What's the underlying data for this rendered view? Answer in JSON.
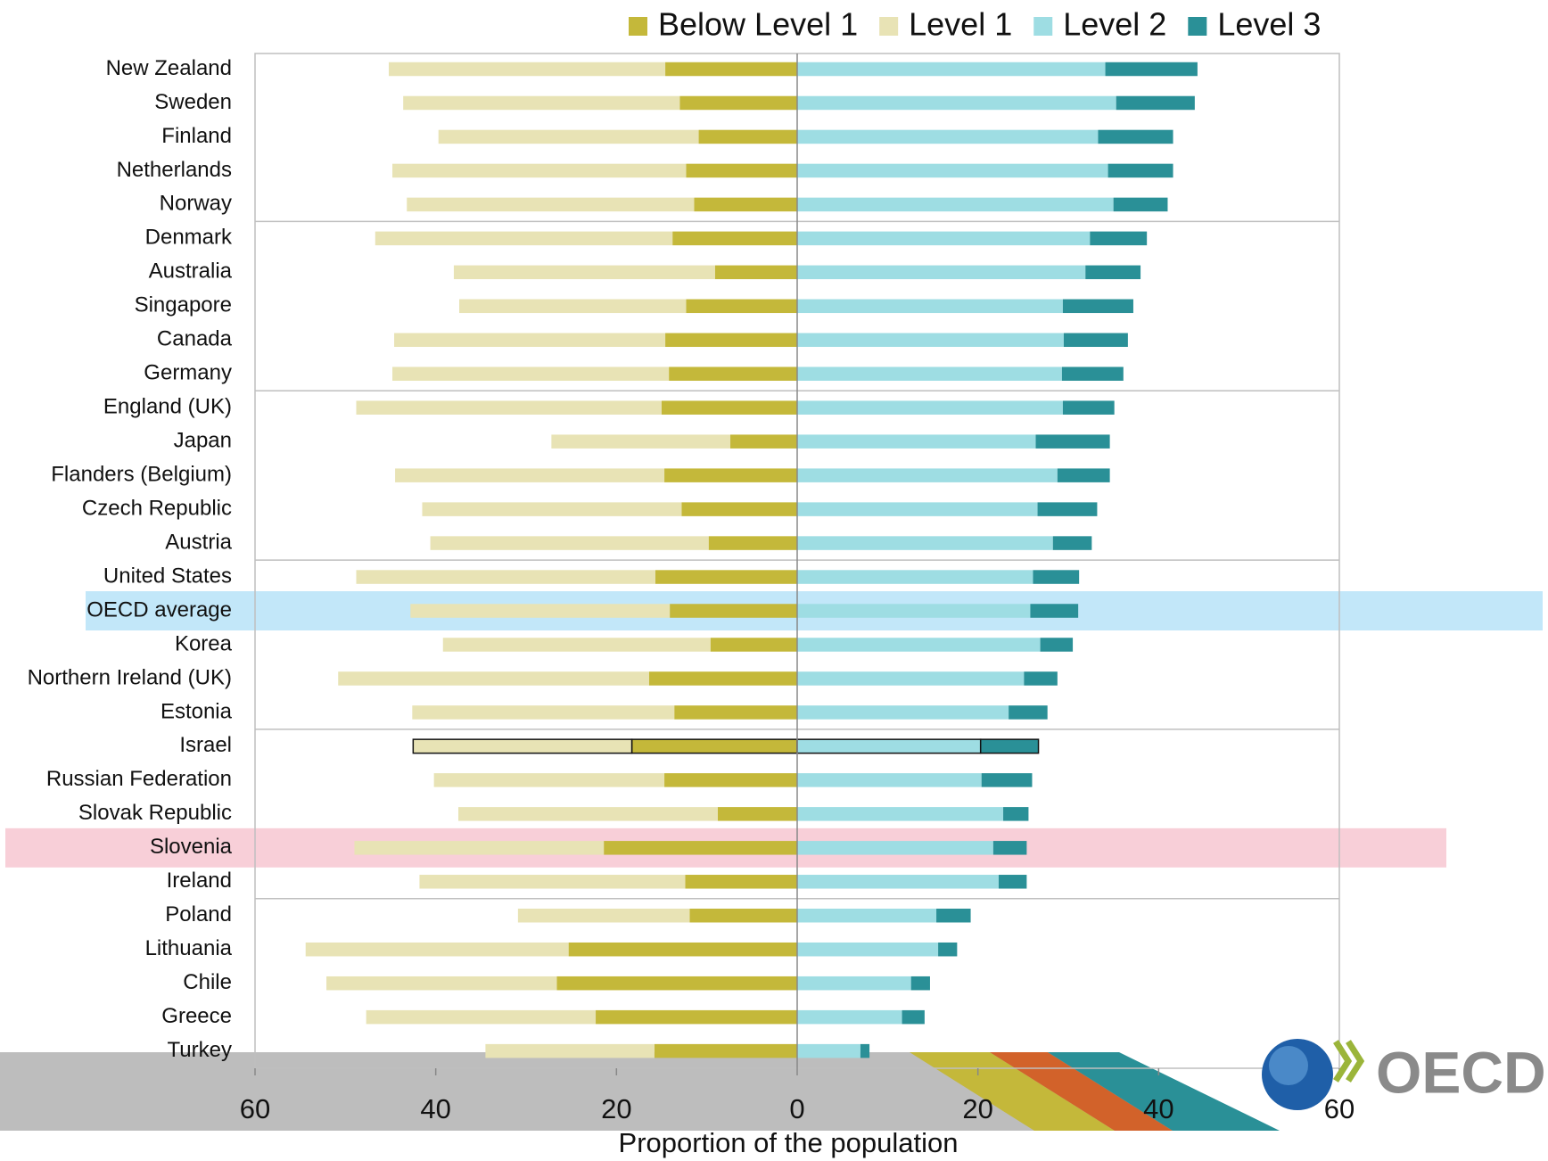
{
  "chart_data": {
    "type": "diverging-bar",
    "x_label": "Proportion of the population",
    "categories": [
      "New Zealand",
      "Sweden",
      "Finland",
      "Netherlands",
      "Norway",
      "Denmark",
      "Australia",
      "Singapore",
      "Canada",
      "Germany",
      "England (UK)",
      "Japan",
      "Flanders (Belgium)",
      "Czech Republic",
      "Austria",
      "United States",
      "OECD average",
      "Korea",
      "Northern Ireland (UK)",
      "Estonia",
      "Israel",
      "Russian Federation",
      "Slovak Republic",
      "Slovenia",
      "Ireland",
      "Poland",
      "Lithuania",
      "Chile",
      "Greece",
      "Turkey"
    ],
    "series": [
      {
        "name": "Below Level 1",
        "color": "#c4b83a",
        "side": "left",
        "values": [
          14.6,
          13.0,
          10.9,
          12.3,
          11.4,
          13.8,
          9.1,
          12.3,
          14.6,
          14.2,
          15.0,
          7.4,
          14.7,
          12.8,
          9.8,
          15.7,
          14.1,
          9.6,
          16.4,
          13.6,
          18.3,
          14.7,
          8.8,
          21.4,
          12.4,
          11.9,
          25.3,
          26.6,
          22.3,
          15.8
        ]
      },
      {
        "name": "Level 1",
        "color": "#e8e3b5",
        "side": "left",
        "values": [
          30.6,
          30.6,
          28.8,
          32.5,
          31.8,
          32.9,
          28.9,
          25.1,
          30.0,
          30.6,
          33.8,
          19.8,
          29.8,
          28.7,
          30.8,
          33.1,
          28.7,
          29.6,
          34.4,
          29.0,
          24.2,
          25.5,
          28.7,
          27.6,
          29.4,
          19.0,
          29.1,
          25.5,
          25.4,
          18.7
        ]
      },
      {
        "name": "Level 2",
        "color": "#9edde3",
        "side": "right",
        "values": [
          34.1,
          35.3,
          33.3,
          34.4,
          35.0,
          32.4,
          31.9,
          29.4,
          29.5,
          29.3,
          29.4,
          26.4,
          28.8,
          26.6,
          28.3,
          26.1,
          25.8,
          26.9,
          25.1,
          23.4,
          20.3,
          20.4,
          22.8,
          21.7,
          22.3,
          15.4,
          15.6,
          12.6,
          11.6,
          7.0
        ]
      },
      {
        "name": "Level 3",
        "color": "#2a9097",
        "side": "right",
        "values": [
          10.2,
          8.7,
          8.3,
          7.2,
          6.0,
          6.3,
          6.1,
          7.8,
          7.1,
          6.8,
          5.7,
          8.2,
          5.8,
          6.6,
          4.3,
          5.1,
          5.3,
          3.6,
          3.7,
          4.3,
          6.4,
          5.6,
          2.8,
          3.7,
          3.1,
          3.8,
          2.1,
          2.1,
          2.5,
          1.0
        ]
      }
    ],
    "xlim": [
      -60,
      60
    ],
    "xticks": [
      {
        "value": -60,
        "label": "60"
      },
      {
        "value": -40,
        "label": "40"
      },
      {
        "value": -20,
        "label": "20"
      },
      0,
      20,
      40,
      60
    ],
    "highlights": [
      {
        "row": 16,
        "color": "#8fd3f4"
      },
      {
        "row": 23,
        "color": "#f2a8b8"
      }
    ],
    "outlined_row": 20,
    "logo": "OECD"
  }
}
